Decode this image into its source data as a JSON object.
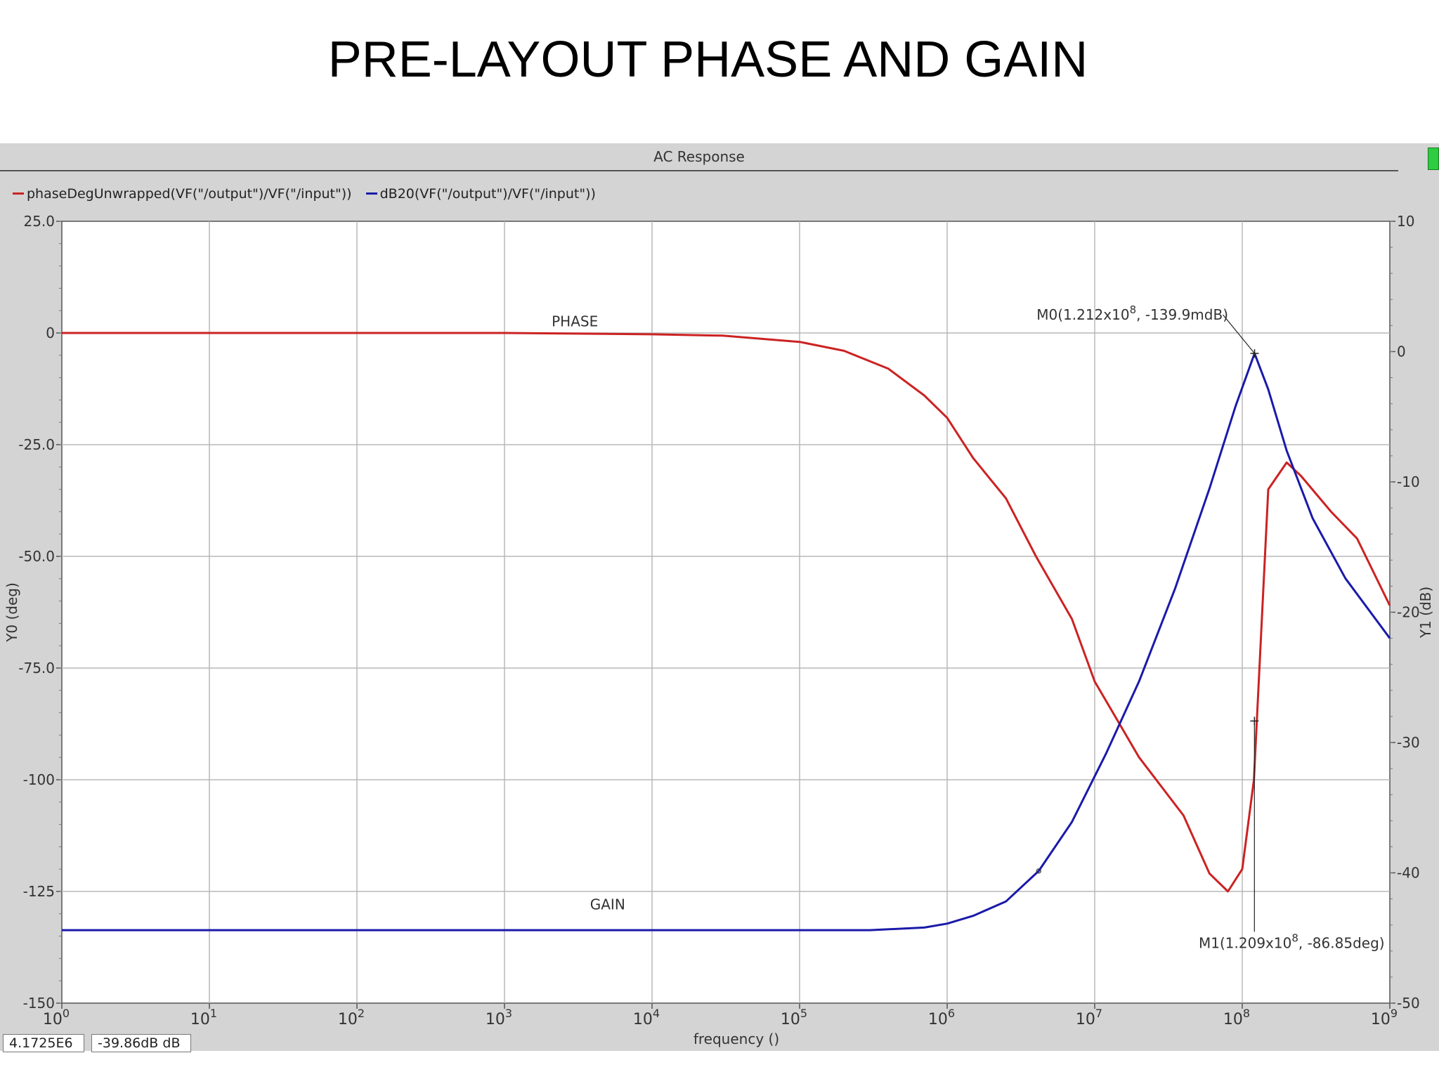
{
  "slide": {
    "title": "PRE-LAYOUT PHASE AND GAIN"
  },
  "window": {
    "title": "AC Response"
  },
  "legend": [
    {
      "label": "phaseDegUnwrapped(VF(\"/output\")/VF(\"/input\"))",
      "color": "#cc2222"
    },
    {
      "label": "dB20(VF(\"/output\")/VF(\"/input\"))",
      "color": "#1a1aaa"
    }
  ],
  "readouts": {
    "x": "4.1725E6",
    "y": "-39.86dB dB"
  },
  "chart_data": {
    "type": "line",
    "x_scale": "log",
    "xlabel": "frequency ()",
    "xlim": [
      1,
      1000000000
    ],
    "xticks": [
      {
        "value": 1,
        "base": "10",
        "exp": "0"
      },
      {
        "value": 10,
        "base": "10",
        "exp": "1"
      },
      {
        "value": 100,
        "base": "10",
        "exp": "2"
      },
      {
        "value": 1000,
        "base": "10",
        "exp": "3"
      },
      {
        "value": 10000,
        "base": "10",
        "exp": "4"
      },
      {
        "value": 100000,
        "base": "10",
        "exp": "5"
      },
      {
        "value": 1000000,
        "base": "10",
        "exp": "6"
      },
      {
        "value": 10000000,
        "base": "10",
        "exp": "7"
      },
      {
        "value": 100000000,
        "base": "10",
        "exp": "8"
      },
      {
        "value": 1000000000,
        "base": "10",
        "exp": "9"
      }
    ],
    "y0": {
      "label": "Y0 (deg)",
      "lim": [
        -150,
        25
      ],
      "ticks": [
        {
          "value": 25,
          "label": "25.0"
        },
        {
          "value": 0,
          "label": "0"
        },
        {
          "value": -25,
          "label": "-25.0"
        },
        {
          "value": -50,
          "label": "-50.0"
        },
        {
          "value": -75,
          "label": "-75.0"
        },
        {
          "value": -100,
          "label": "-100"
        },
        {
          "value": -125,
          "label": "-125"
        },
        {
          "value": -150,
          "label": "-150"
        }
      ]
    },
    "y1": {
      "label": "Y1 (dB)",
      "lim": [
        -50,
        10
      ],
      "ticks": [
        {
          "value": 10,
          "label": "10"
        },
        {
          "value": 0,
          "label": "0"
        },
        {
          "value": -10,
          "label": "-10"
        },
        {
          "value": -20,
          "label": "-20"
        },
        {
          "value": -30,
          "label": "-30"
        },
        {
          "value": -40,
          "label": "-40"
        },
        {
          "value": -50,
          "label": "-50"
        }
      ]
    },
    "grid": true,
    "series": [
      {
        "axis": "y0",
        "color": "#cc2222",
        "points": [
          [
            1,
            0
          ],
          [
            1000,
            0
          ],
          [
            10000,
            -0.3
          ],
          [
            30000,
            -0.6
          ],
          [
            100000,
            -2
          ],
          [
            200000,
            -4
          ],
          [
            400000,
            -8
          ],
          [
            700000,
            -14
          ],
          [
            1000000,
            -19
          ],
          [
            1500000,
            -28
          ],
          [
            2500000,
            -37
          ],
          [
            4000000,
            -50
          ],
          [
            7000000,
            -64
          ],
          [
            10000000,
            -78
          ],
          [
            20000000,
            -95
          ],
          [
            40000000,
            -108
          ],
          [
            60000000,
            -121
          ],
          [
            80000000,
            -125
          ],
          [
            100000000,
            -120
          ],
          [
            120000000,
            -100
          ],
          [
            150000000,
            -35
          ],
          [
            200000000,
            -29
          ],
          [
            250000000,
            -32
          ],
          [
            400000000,
            -40
          ],
          [
            600000000,
            -46
          ],
          [
            1000000000,
            -61
          ]
        ]
      },
      {
        "axis": "y1",
        "color": "#1a1aaa",
        "points": [
          [
            1,
            -44.4
          ],
          [
            300000,
            -44.4
          ],
          [
            700000,
            -44.2
          ],
          [
            1000000,
            -43.9
          ],
          [
            1500000,
            -43.3
          ],
          [
            2500000,
            -42.2
          ],
          [
            4172500,
            -39.86
          ],
          [
            7000000,
            -36.1
          ],
          [
            12000000,
            -30.8
          ],
          [
            20000000,
            -25.3
          ],
          [
            35000000,
            -18.2
          ],
          [
            60000000,
            -10.5
          ],
          [
            90000000,
            -4.2
          ],
          [
            121200000,
            -0.14
          ],
          [
            150000000,
            -2.9
          ],
          [
            200000000,
            -7.6
          ],
          [
            300000000,
            -12.8
          ],
          [
            500000000,
            -17.4
          ],
          [
            1000000000,
            -22
          ]
        ]
      }
    ],
    "annotations": [
      {
        "text": "PHASE",
        "x": 3000,
        "axis": "y0",
        "y": 1.5
      },
      {
        "text": "GAIN",
        "x": 5000,
        "axis": "y1",
        "y": -42.8
      }
    ],
    "markers": [
      {
        "name": "M0",
        "x": 121200000,
        "axis": "y1",
        "y": -0.1399,
        "text_before": "M0(1.212x10",
        "sup": "8",
        "text_after": ", -139.9mdB)"
      },
      {
        "name": "M1",
        "x": 120900000,
        "axis": "y0",
        "y": -86.85,
        "text_before": "M1(1.209x10",
        "sup": "8",
        "text_after": ", -86.85deg)"
      }
    ]
  }
}
